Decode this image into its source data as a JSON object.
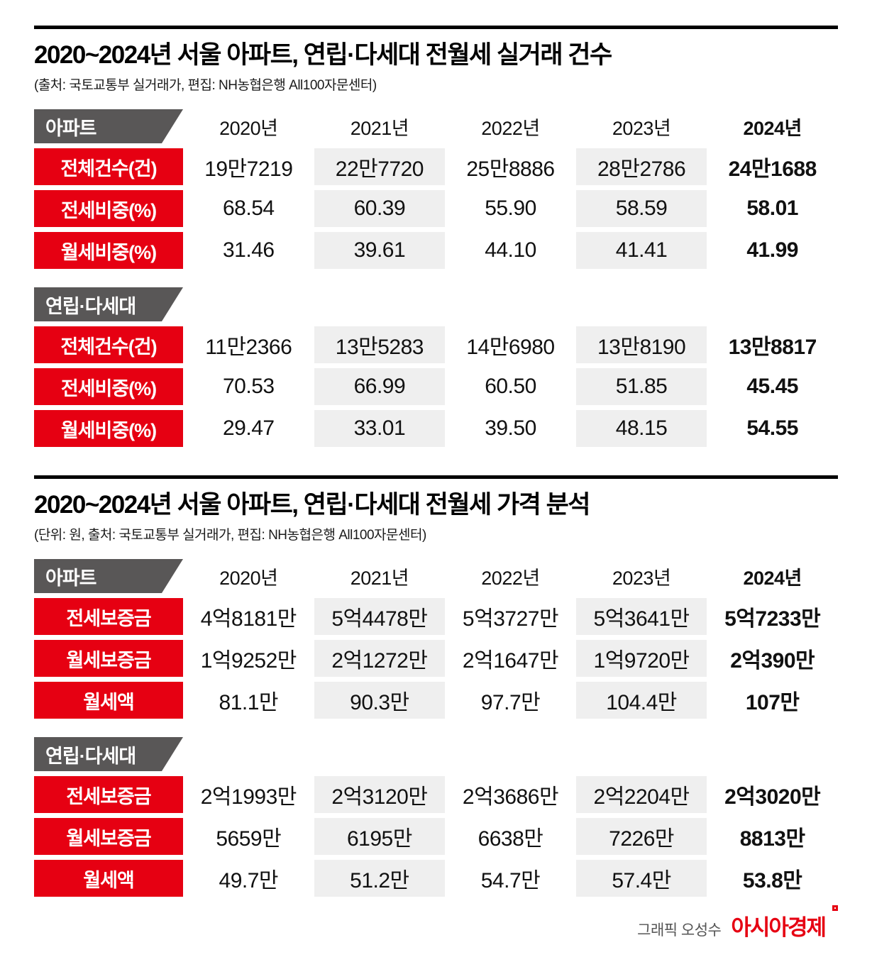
{
  "chart_data": [
    {
      "type": "table",
      "title": "2020~2024년 서울 아파트, 연립·다세대 전월세 실거래 건수",
      "source": "(출처: 국토교통부 실거래가, 편집: NH농협은행 All100자문센터)",
      "columns": [
        "2020년",
        "2021년",
        "2022년",
        "2023년",
        "2024년"
      ],
      "groups": [
        {
          "name": "아파트",
          "rows": [
            {
              "label": "전체건수(건)",
              "values": [
                "19만7219",
                "22만7720",
                "25만8886",
                "28만2786",
                "24만1688"
              ]
            },
            {
              "label": "전세비중(%)",
              "values": [
                "68.54",
                "60.39",
                "55.90",
                "58.59",
                "58.01"
              ]
            },
            {
              "label": "월세비중(%)",
              "values": [
                "31.46",
                "39.61",
                "44.10",
                "41.41",
                "41.99"
              ]
            }
          ]
        },
        {
          "name": "연립·다세대",
          "rows": [
            {
              "label": "전체건수(건)",
              "values": [
                "11만2366",
                "13만5283",
                "14만6980",
                "13만8190",
                "13만8817"
              ]
            },
            {
              "label": "전세비중(%)",
              "values": [
                "70.53",
                "66.99",
                "60.50",
                "51.85",
                "45.45"
              ]
            },
            {
              "label": "월세비중(%)",
              "values": [
                "29.47",
                "33.01",
                "39.50",
                "48.15",
                "54.55"
              ]
            }
          ]
        }
      ]
    },
    {
      "type": "table",
      "title": "2020~2024년 서울 아파트, 연립·다세대 전월세 가격 분석",
      "source": "(단위: 원, 출처: 국토교통부 실거래가, 편집: NH농협은행 All100자문센터)",
      "columns": [
        "2020년",
        "2021년",
        "2022년",
        "2023년",
        "2024년"
      ],
      "groups": [
        {
          "name": "아파트",
          "rows": [
            {
              "label": "전세보증금",
              "values": [
                "4억8181만",
                "5억4478만",
                "5억3727만",
                "5억3641만",
                "5억7233만"
              ]
            },
            {
              "label": "월세보증금",
              "values": [
                "1억9252만",
                "2억1272만",
                "2억1647만",
                "1억9720만",
                "2억390만"
              ]
            },
            {
              "label": "월세액",
              "values": [
                "81.1만",
                "90.3만",
                "97.7만",
                "104.4만",
                "107만"
              ]
            }
          ]
        },
        {
          "name": "연립·다세대",
          "rows": [
            {
              "label": "전세보증금",
              "values": [
                "2억1993만",
                "2억3120만",
                "2억3686만",
                "2억2204만",
                "2억3020만"
              ]
            },
            {
              "label": "월세보증금",
              "values": [
                "5659만",
                "6195만",
                "6638만",
                "7226만",
                "8813만"
              ]
            },
            {
              "label": "월세액",
              "values": [
                "49.7만",
                "51.2만",
                "54.7만",
                "57.4만",
                "53.8만"
              ]
            }
          ]
        }
      ]
    }
  ],
  "footer": {
    "credit": "그래픽 오성수",
    "brand": "아시아경제"
  },
  "colors": {
    "accent_red": "#e60012",
    "tab_gray": "#595757",
    "shade_gray": "#efefef",
    "rule_black": "#000000"
  }
}
